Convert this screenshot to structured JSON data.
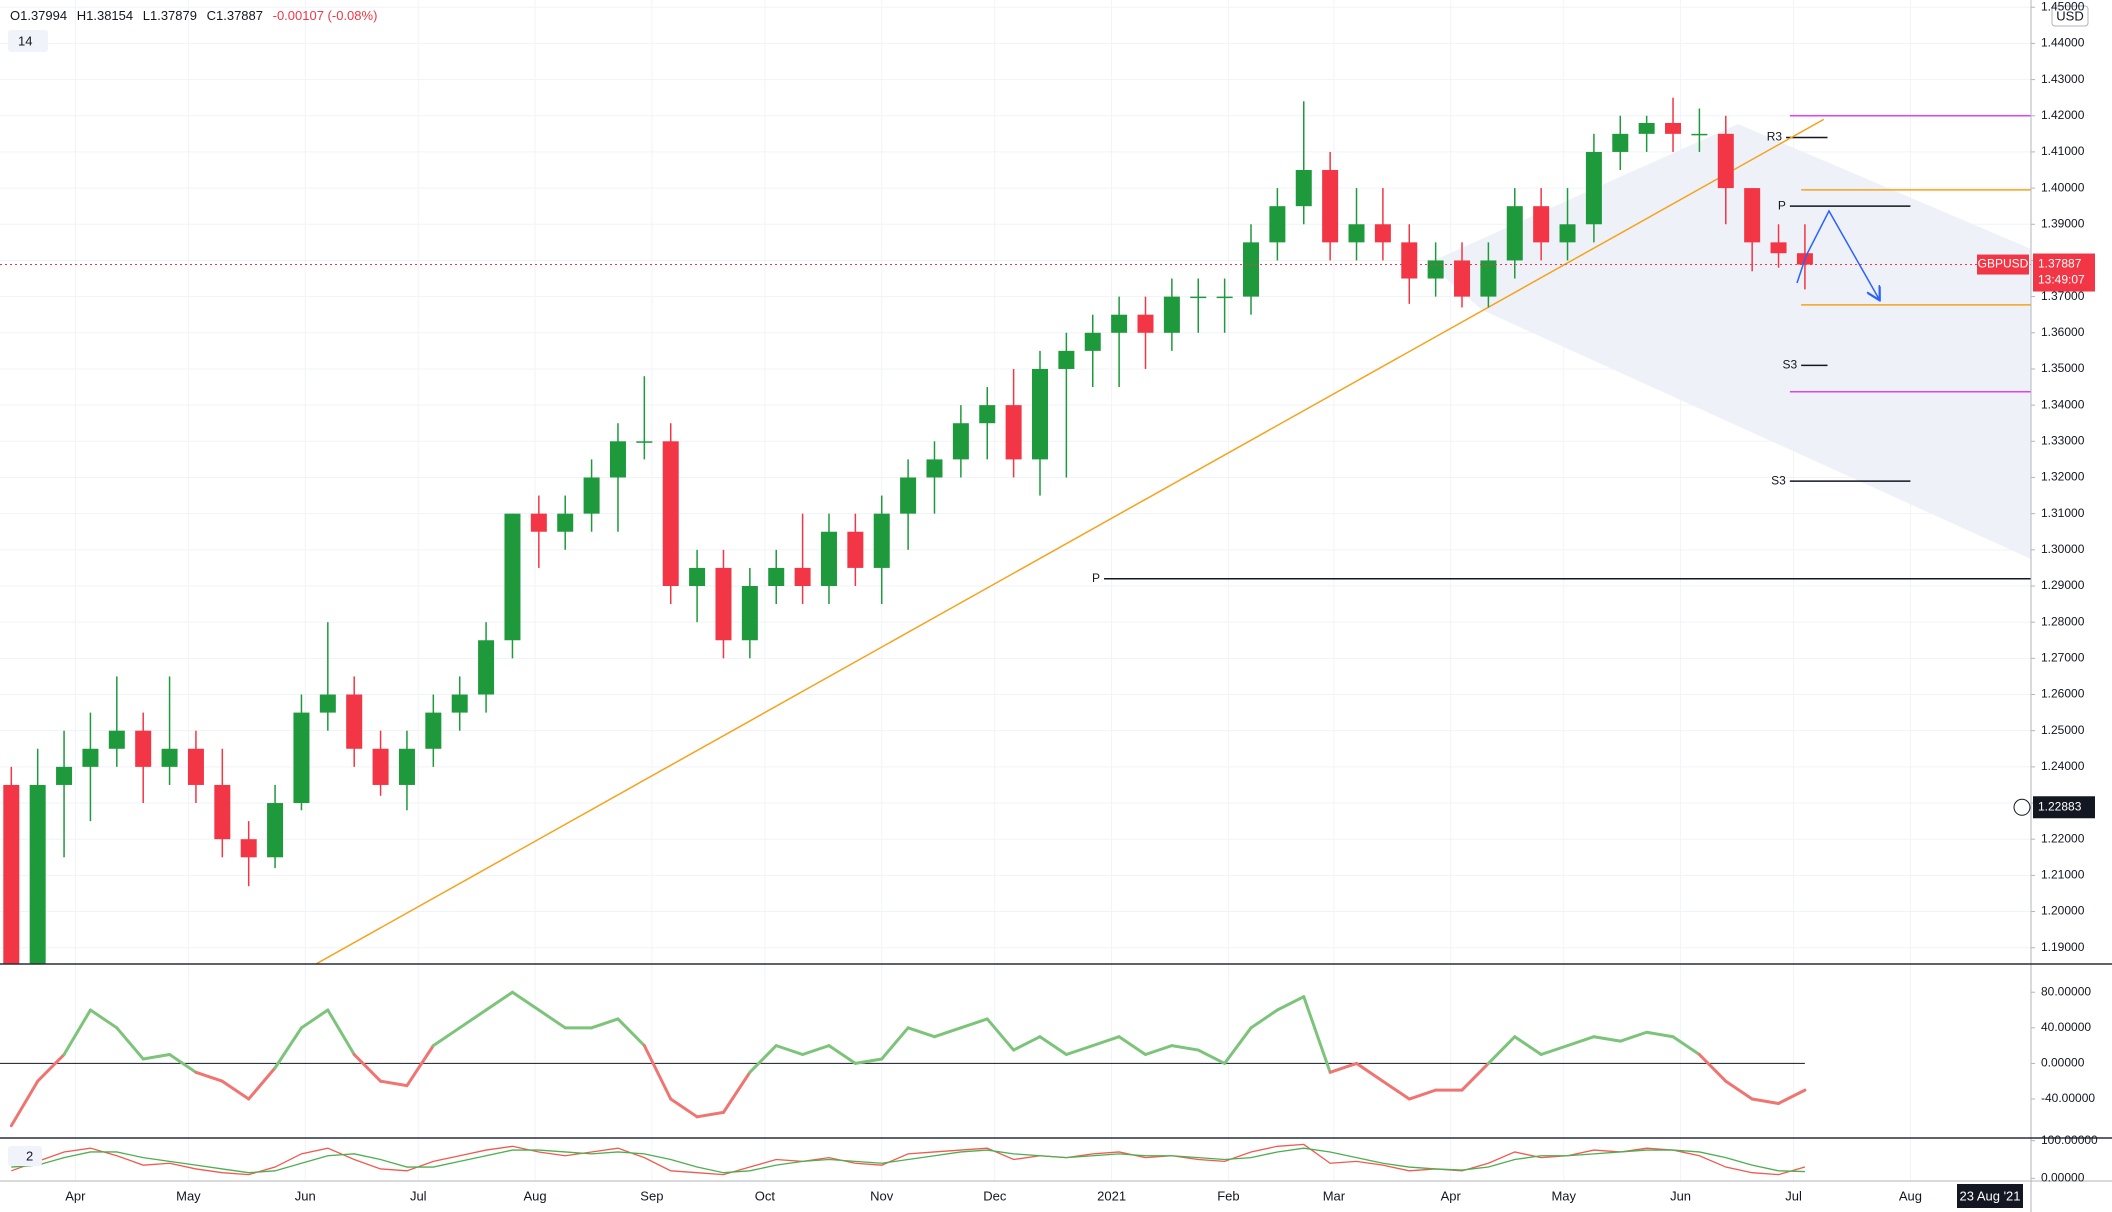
{
  "header": {
    "ohlc": [
      "O1.37994",
      "H1.38154",
      "L1.37879",
      "C1.37887",
      "-0.00107 (-0.08%)"
    ],
    "indicator_length": "14",
    "currency": "USD",
    "indicator_count": "2",
    "crosshair_date": "23 Aug '21"
  },
  "chart_data": [
    {
      "type": "candlestick",
      "x": [
        -17,
        -10,
        -3,
        4,
        11,
        18,
        25,
        32,
        39,
        46,
        53,
        60,
        67,
        74,
        81,
        88,
        95,
        102,
        109,
        116,
        123,
        130,
        137,
        144,
        151,
        158,
        165,
        172,
        179,
        186,
        193,
        200,
        207,
        214,
        221,
        228,
        235,
        242,
        249,
        256,
        263,
        270,
        277,
        284,
        291,
        298,
        305,
        312,
        319,
        326,
        333,
        340,
        347,
        354,
        361,
        368,
        375,
        382,
        389,
        396,
        403,
        410,
        417,
        424,
        431,
        438,
        445,
        452,
        459
      ],
      "open": [
        1.235,
        1.16,
        1.235,
        1.24,
        1.245,
        1.25,
        1.24,
        1.245,
        1.235,
        1.22,
        1.215,
        1.23,
        1.255,
        1.26,
        1.245,
        1.235,
        1.245,
        1.255,
        1.26,
        1.275,
        1.31,
        1.305,
        1.31,
        1.32,
        1.33,
        1.33,
        1.29,
        1.295,
        1.275,
        1.29,
        1.295,
        1.29,
        1.305,
        1.295,
        1.31,
        1.32,
        1.325,
        1.335,
        1.34,
        1.325,
        1.35,
        1.355,
        1.36,
        1.365,
        1.36,
        1.37,
        1.37,
        1.37,
        1.385,
        1.395,
        1.405,
        1.385,
        1.39,
        1.385,
        1.375,
        1.38,
        1.37,
        1.38,
        1.395,
        1.385,
        1.39,
        1.41,
        1.415,
        1.418,
        1.415,
        1.415,
        1.4,
        1.385,
        1.382
      ],
      "high": [
        1.24,
        1.245,
        1.25,
        1.255,
        1.265,
        1.255,
        1.265,
        1.25,
        1.245,
        1.225,
        1.235,
        1.26,
        1.28,
        1.265,
        1.25,
        1.25,
        1.26,
        1.265,
        1.28,
        1.31,
        1.315,
        1.315,
        1.325,
        1.335,
        1.348,
        1.335,
        1.3,
        1.3,
        1.295,
        1.3,
        1.31,
        1.31,
        1.31,
        1.315,
        1.325,
        1.33,
        1.34,
        1.345,
        1.35,
        1.355,
        1.36,
        1.365,
        1.37,
        1.37,
        1.375,
        1.375,
        1.375,
        1.39,
        1.4,
        1.424,
        1.41,
        1.4,
        1.4,
        1.39,
        1.385,
        1.385,
        1.385,
        1.4,
        1.4,
        1.4,
        1.415,
        1.42,
        1.42,
        1.425,
        1.422,
        1.42,
        1.4,
        1.39,
        1.39
      ],
      "low": [
        1.15,
        1.145,
        1.215,
        1.225,
        1.24,
        1.23,
        1.235,
        1.23,
        1.215,
        1.207,
        1.212,
        1.228,
        1.25,
        1.24,
        1.232,
        1.228,
        1.24,
        1.25,
        1.255,
        1.27,
        1.295,
        1.3,
        1.305,
        1.305,
        1.325,
        1.285,
        1.28,
        1.27,
        1.27,
        1.285,
        1.285,
        1.285,
        1.29,
        1.285,
        1.3,
        1.31,
        1.32,
        1.325,
        1.32,
        1.315,
        1.32,
        1.345,
        1.345,
        1.35,
        1.355,
        1.36,
        1.36,
        1.365,
        1.38,
        1.39,
        1.38,
        1.38,
        1.38,
        1.368,
        1.37,
        1.367,
        1.367,
        1.375,
        1.38,
        1.38,
        1.385,
        1.405,
        1.41,
        1.41,
        1.41,
        1.39,
        1.377,
        1.378,
        1.372
      ],
      "close": [
        1.16,
        1.235,
        1.24,
        1.245,
        1.25,
        1.24,
        1.245,
        1.235,
        1.22,
        1.215,
        1.23,
        1.255,
        1.26,
        1.245,
        1.235,
        1.245,
        1.255,
        1.26,
        1.275,
        1.31,
        1.305,
        1.31,
        1.32,
        1.33,
        1.33,
        1.29,
        1.295,
        1.275,
        1.29,
        1.295,
        1.29,
        1.305,
        1.295,
        1.31,
        1.32,
        1.325,
        1.335,
        1.34,
        1.325,
        1.35,
        1.355,
        1.36,
        1.365,
        1.36,
        1.37,
        1.37,
        1.37,
        1.385,
        1.395,
        1.405,
        1.385,
        1.39,
        1.385,
        1.375,
        1.38,
        1.37,
        1.38,
        1.395,
        1.385,
        1.39,
        1.41,
        1.415,
        1.418,
        1.415,
        1.415,
        1.4,
        1.385,
        1.382,
        1.37887
      ],
      "up_color": "#1e9a3c",
      "down_color": "#f23645",
      "xlim": [
        -20,
        519
      ],
      "xticks": [
        {
          "value": 0,
          "label": "Apr"
        },
        {
          "value": 30,
          "label": "May"
        },
        {
          "value": 61,
          "label": "Jun"
        },
        {
          "value": 91,
          "label": "Jul"
        },
        {
          "value": 122,
          "label": "Aug"
        },
        {
          "value": 153,
          "label": "Sep"
        },
        {
          "value": 183,
          "label": "Oct"
        },
        {
          "value": 214,
          "label": "Nov"
        },
        {
          "value": 244,
          "label": "Dec"
        },
        {
          "value": 275,
          "label": "2021"
        },
        {
          "value": 306,
          "label": "Feb"
        },
        {
          "value": 334,
          "label": "Mar"
        },
        {
          "value": 365,
          "label": "Apr"
        },
        {
          "value": 395,
          "label": "May"
        },
        {
          "value": 426,
          "label": "Jun"
        },
        {
          "value": 456,
          "label": "Jul"
        },
        {
          "value": 487,
          "label": "Aug"
        }
      ],
      "ylim": [
        1.1855,
        1.452
      ],
      "yticks": [
        {
          "value": 1.19,
          "label": "1.19000"
        },
        {
          "value": 1.2,
          "label": "1.20000"
        },
        {
          "value": 1.21,
          "label": "1.21000"
        },
        {
          "value": 1.22,
          "label": "1.22000"
        },
        {
          "value": 1.23,
          "label": "1.23000"
        },
        {
          "value": 1.24,
          "label": "1.24000"
        },
        {
          "value": 1.25,
          "label": "1.25000"
        },
        {
          "value": 1.26,
          "label": "1.26000"
        },
        {
          "value": 1.27,
          "label": "1.27000"
        },
        {
          "value": 1.28,
          "label": "1.28000"
        },
        {
          "value": 1.29,
          "label": "1.29000"
        },
        {
          "value": 1.3,
          "label": "1.30000"
        },
        {
          "value": 1.31,
          "label": "1.31000"
        },
        {
          "value": 1.32,
          "label": "1.32000"
        },
        {
          "value": 1.33,
          "label": "1.33000"
        },
        {
          "value": 1.34,
          "label": "1.34000"
        },
        {
          "value": 1.35,
          "label": "1.35000"
        },
        {
          "value": 1.36,
          "label": "1.36000"
        },
        {
          "value": 1.37,
          "label": "1.37000"
        },
        {
          "value": 1.38,
          "label": "1.38000"
        },
        {
          "value": 1.39,
          "label": "1.39000"
        },
        {
          "value": 1.4,
          "label": "1.40000"
        },
        {
          "value": 1.41,
          "label": "1.41000"
        },
        {
          "value": 1.42,
          "label": "1.42000"
        },
        {
          "value": 1.43,
          "label": "1.43000"
        },
        {
          "value": 1.44,
          "label": "1.44000"
        },
        {
          "value": 1.45,
          "label": "1.45000"
        }
      ],
      "grid": true,
      "symbol": "GBPUSD",
      "countdown": "13:49:07",
      "crosshair_price": 1.22883,
      "levels": [
        {
          "label": "R3",
          "value": 1.414,
          "x": [
            454,
            465
          ],
          "color": "#131722"
        },
        {
          "label": "P",
          "value": 1.395,
          "x": [
            455,
            487
          ],
          "color": "#131722"
        },
        {
          "label": "S3",
          "value": 1.351,
          "x": [
            458,
            465
          ],
          "color": "#131722"
        },
        {
          "label": "S3",
          "value": 1.319,
          "x": [
            455,
            487
          ],
          "color": "#131722"
        },
        {
          "label": "P",
          "value": 1.292,
          "x": [
            273,
            519
          ],
          "color": "#131722"
        },
        {
          "value": 1.3995,
          "x": [
            458,
            519
          ],
          "color": "#f7a21b"
        },
        {
          "value": 1.3677,
          "x": [
            458,
            519
          ],
          "color": "#f7a21b"
        },
        {
          "value": 1.42,
          "x": [
            455,
            519
          ],
          "color": "#e040fb"
        },
        {
          "value": 1.3437,
          "x": [
            455,
            519
          ],
          "color": "#e040fb"
        }
      ],
      "trendline": {
        "x": [
          63,
          464
        ],
        "y": [
          1.185,
          1.419
        ],
        "color": "#f7a21b"
      }
    },
    {
      "type": "oscillator",
      "x": [
        -17,
        -10,
        -3,
        4,
        11,
        18,
        25,
        32,
        39,
        46,
        53,
        60,
        67,
        74,
        81,
        88,
        95,
        102,
        109,
        116,
        123,
        130,
        137,
        144,
        151,
        158,
        165,
        172,
        179,
        186,
        193,
        200,
        207,
        214,
        221,
        228,
        235,
        242,
        249,
        256,
        263,
        270,
        277,
        284,
        291,
        298,
        305,
        312,
        319,
        326,
        333,
        340,
        347,
        354,
        361,
        368,
        375,
        382,
        389,
        396,
        403,
        410,
        417,
        424,
        431,
        438,
        445,
        452,
        459
      ],
      "values": [
        -70,
        -20,
        10,
        60,
        40,
        5,
        10,
        -10,
        -20,
        -40,
        -5,
        40,
        60,
        10,
        -20,
        -25,
        20,
        40,
        60,
        80,
        60,
        40,
        40,
        50,
        20,
        -40,
        -60,
        -55,
        -10,
        20,
        10,
        20,
        0,
        5,
        40,
        30,
        40,
        50,
        15,
        30,
        10,
        20,
        30,
        10,
        20,
        15,
        0,
        40,
        60,
        75,
        -10,
        0,
        -20,
        -40,
        -30,
        -30,
        0,
        30,
        10,
        20,
        30,
        25,
        35,
        30,
        10,
        -20,
        -40,
        -45,
        -30
      ],
      "up_color": "#7cc47a",
      "down_color": "#f07470",
      "ylim": [
        -83.8,
        111.7
      ],
      "yticks": [
        {
          "value": 80,
          "label": "80.00000"
        },
        {
          "value": 40,
          "label": "40.00000"
        },
        {
          "value": 0,
          "label": "0.00000"
        },
        {
          "value": -40,
          "label": "-40.00000"
        }
      ]
    },
    {
      "type": "line",
      "x": [
        -17,
        -10,
        -3,
        4,
        11,
        18,
        25,
        32,
        39,
        46,
        53,
        60,
        67,
        74,
        81,
        88,
        95,
        102,
        109,
        116,
        123,
        130,
        137,
        144,
        151,
        158,
        165,
        172,
        179,
        186,
        193,
        200,
        207,
        214,
        221,
        228,
        235,
        242,
        249,
        256,
        263,
        270,
        277,
        284,
        291,
        298,
        305,
        312,
        319,
        326,
        333,
        340,
        347,
        354,
        361,
        368,
        375,
        382,
        389,
        396,
        403,
        410,
        417,
        424,
        431,
        438,
        445,
        452,
        459
      ],
      "series": [
        {
          "color": "#f05a4f",
          "values": [
            20,
            45,
            70,
            80,
            60,
            35,
            40,
            25,
            15,
            10,
            30,
            65,
            80,
            50,
            25,
            20,
            45,
            60,
            75,
            85,
            70,
            60,
            70,
            80,
            55,
            20,
            15,
            10,
            30,
            50,
            45,
            55,
            40,
            35,
            65,
            70,
            75,
            80,
            50,
            60,
            55,
            65,
            70,
            55,
            60,
            50,
            45,
            70,
            85,
            90,
            40,
            45,
            35,
            20,
            25,
            20,
            40,
            70,
            55,
            60,
            75,
            70,
            80,
            75,
            60,
            30,
            15,
            10,
            30
          ]
        },
        {
          "color": "#4caf50",
          "values": [
            30,
            35,
            55,
            70,
            70,
            55,
            45,
            35,
            25,
            15,
            20,
            40,
            60,
            65,
            50,
            30,
            30,
            45,
            60,
            75,
            75,
            70,
            65,
            70,
            65,
            50,
            30,
            15,
            20,
            35,
            45,
            50,
            45,
            40,
            50,
            60,
            70,
            75,
            65,
            60,
            55,
            60,
            65,
            60,
            60,
            55,
            50,
            55,
            70,
            80,
            70,
            55,
            40,
            30,
            25,
            22,
            30,
            50,
            60,
            60,
            65,
            70,
            75,
            75,
            70,
            55,
            35,
            20,
            18
          ]
        }
      ],
      "ylim": [
        -7,
        107
      ],
      "yticks": [
        {
          "value": 100,
          "label": "100.00000"
        },
        {
          "value": 0,
          "label": "0.00000"
        }
      ]
    }
  ]
}
